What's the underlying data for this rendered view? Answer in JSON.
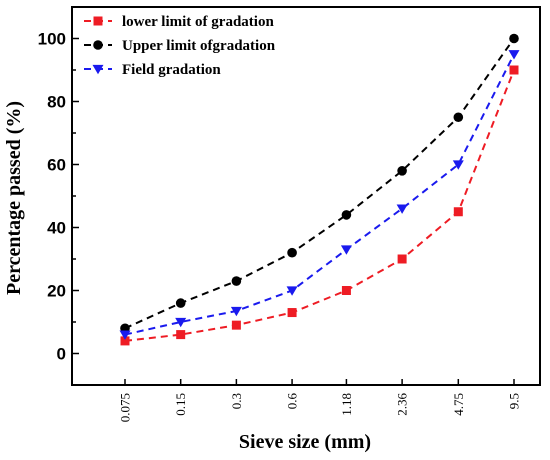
{
  "chart_data": {
    "type": "line",
    "title": "",
    "xlabel": "Sieve size (mm)",
    "ylabel": "Percentage passed (%)",
    "x_scale": "log",
    "x": [
      0.075,
      0.15,
      0.3,
      0.6,
      1.18,
      2.36,
      4.75,
      9.5
    ],
    "x_tick_labels": [
      "0.075",
      "0.15",
      "0.3",
      "0.6",
      "1.18",
      "2.36",
      "4.75",
      "9.5"
    ],
    "y_ticks": [
      0,
      20,
      40,
      60,
      80,
      100
    ],
    "ylim": [
      -10,
      110
    ],
    "grid": false,
    "legend_position": "top-left",
    "series": [
      {
        "name": "lower limit of gradation",
        "color": "#ee1c24",
        "marker": "square",
        "values": [
          4,
          6,
          9,
          13,
          20,
          30,
          45,
          90
        ]
      },
      {
        "name": "Upper limit ofgradation",
        "color": "#000000",
        "marker": "circle",
        "values": [
          8,
          16,
          23,
          32,
          44,
          58,
          75,
          100
        ]
      },
      {
        "name": "Field gradation",
        "color": "#1a1aee",
        "marker": "triangle-down",
        "values": [
          6,
          10,
          13.5,
          20,
          33,
          46,
          60,
          95
        ]
      }
    ]
  }
}
